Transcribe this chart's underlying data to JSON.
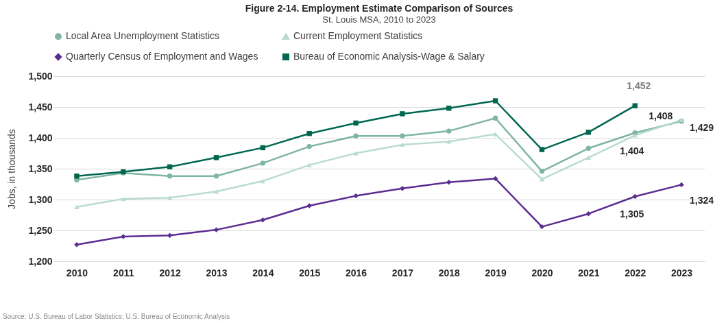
{
  "chart_data": {
    "type": "line",
    "title": "Figure 2-14. Employment Estimate Comparison of Sources",
    "subtitle": "St. Louis MSA, 2010 to 2023",
    "ylabel": "Jobs, in thousands",
    "categories": [
      "2010",
      "2011",
      "2012",
      "2013",
      "2014",
      "2015",
      "2016",
      "2017",
      "2018",
      "2019",
      "2020",
      "2021",
      "2022",
      "2023"
    ],
    "series": [
      {
        "name": "Local Area Unemployment Statistics",
        "color": "#7fb5a3",
        "marker": "circle",
        "values": [
          1332,
          1343,
          1338,
          1338,
          1359,
          1386,
          1403,
          1403,
          1411,
          1432,
          1346,
          1383,
          1408,
          1427
        ],
        "value_labels": [
          null,
          null,
          null,
          null,
          null,
          null,
          null,
          null,
          null,
          null,
          null,
          null,
          "1,408",
          null
        ]
      },
      {
        "name": "Current Employment Statistics",
        "color": "#b9dccf",
        "marker": "triangle",
        "values": [
          1288,
          1301,
          1303,
          1313,
          1330,
          1356,
          1375,
          1389,
          1394,
          1406,
          1333,
          1368,
          1404,
          1429
        ],
        "value_labels": [
          null,
          null,
          null,
          null,
          null,
          null,
          null,
          null,
          null,
          null,
          null,
          null,
          "1,404",
          "1,429"
        ]
      },
      {
        "name": "Quarterly Census of Employment and Wages",
        "color": "#5c2d91",
        "marker": "diamond",
        "values": [
          1227,
          1240,
          1242,
          1251,
          1267,
          1290,
          1306,
          1318,
          1328,
          1334,
          1256,
          1277,
          1305,
          1324
        ],
        "value_labels": [
          null,
          null,
          null,
          null,
          null,
          null,
          null,
          null,
          null,
          null,
          null,
          null,
          "1,305",
          "1,324"
        ]
      },
      {
        "name": "Bureau of Economic Analysis-Wage & Salary",
        "color": "#006751",
        "marker": "square",
        "values": [
          1338,
          1345,
          1353,
          1368,
          1384,
          1407,
          1424,
          1439,
          1448,
          1460,
          1381,
          1409,
          1452,
          null
        ],
        "value_labels": [
          null,
          null,
          null,
          null,
          null,
          null,
          null,
          null,
          null,
          null,
          null,
          null,
          "1,452",
          null
        ]
      }
    ],
    "ylim": [
      1200,
      1500
    ],
    "yticks": [
      {
        "value": 1200,
        "label": "1,200"
      },
      {
        "value": 1250,
        "label": "1,250"
      },
      {
        "value": 1300,
        "label": "1,300"
      },
      {
        "value": 1350,
        "label": "1,350"
      },
      {
        "value": 1400,
        "label": "1,400"
      },
      {
        "value": 1450,
        "label": "1,450"
      },
      {
        "value": 1500,
        "label": "1,500"
      }
    ],
    "grid": "y",
    "legend": "top",
    "line_style": "solid",
    "annotations": [
      "Source: U.S. Bureau of Labor Statistics; U.S. Bureau of Economic Analysis"
    ]
  }
}
